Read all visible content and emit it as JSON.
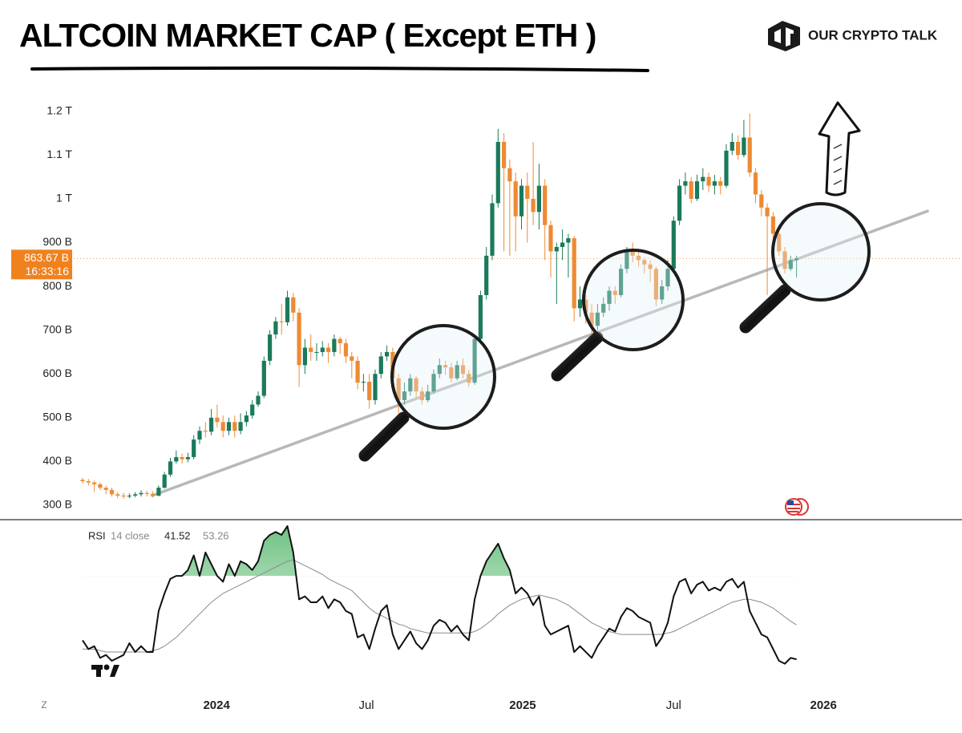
{
  "chart_data": {
    "type": "candlestick",
    "title": "ALTCOIN MARKET CAP ( Except ETH )",
    "brand": "OUR CRYPTO TALK",
    "corner_label": "Z",
    "up_color": "#1b7a5b",
    "down_color": "#ee8a33",
    "grid": false,
    "xlim": [
      0,
      150
    ],
    "xticks": [
      {
        "value": 22.9,
        "label": "2024"
      },
      {
        "value": 48.5,
        "label": "Jul"
      },
      {
        "value": 75.2,
        "label": "2025"
      },
      {
        "value": 101,
        "label": "Jul"
      },
      {
        "value": 126.6,
        "label": "2026"
      }
    ],
    "ylim": [
      267,
      1271
    ],
    "yticks": [
      {
        "value": 300,
        "label": "300 B"
      },
      {
        "value": 400,
        "label": "400 B"
      },
      {
        "value": 500,
        "label": "500 B"
      },
      {
        "value": 600,
        "label": "600 B"
      },
      {
        "value": 700,
        "label": "700 B"
      },
      {
        "value": 800,
        "label": "800 B"
      },
      {
        "value": 900,
        "label": "900 B"
      },
      {
        "value": 1000,
        "label": "1 T"
      },
      {
        "value": 1100,
        "label": "1.1 T"
      },
      {
        "value": 1200,
        "label": "1.2 T"
      }
    ],
    "open": [
      358,
      355,
      352,
      348,
      340,
      335,
      325,
      322,
      320,
      322,
      325,
      328,
      326,
      322,
      340,
      370,
      400,
      410,
      405,
      410,
      450,
      470,
      468,
      500,
      490,
      470,
      490,
      470,
      490,
      505,
      530,
      550,
      630,
      690,
      720,
      718,
      775,
      740,
      620,
      660,
      650,
      650,
      660,
      650,
      680,
      670,
      640,
      630,
      580,
      582,
      540,
      600,
      640,
      650,
      590,
      540,
      560,
      590,
      560,
      540,
      560,
      600,
      620,
      615,
      590,
      620,
      600,
      580,
      680,
      780,
      870,
      990,
      1130,
      1070,
      1040,
      960,
      1030,
      1000,
      970,
      1030,
      940,
      880,
      890,
      900,
      910,
      750,
      770,
      740,
      710,
      740,
      760,
      790,
      780,
      840,
      880,
      870,
      860,
      850,
      840,
      770,
      800,
      840,
      950,
      1030,
      1040,
      1000,
      1040,
      1050,
      1030,
      1040,
      1030,
      1110,
      1130,
      1100,
      1140,
      1060,
      1010,
      980,
      960,
      920,
      880,
      840,
      860
    ],
    "high": [
      362,
      360,
      356,
      352,
      345,
      340,
      330,
      328,
      327,
      330,
      334,
      333,
      332,
      345,
      376,
      408,
      425,
      418,
      420,
      460,
      480,
      490,
      520,
      530,
      505,
      500,
      505,
      510,
      515,
      540,
      560,
      640,
      700,
      730,
      760,
      790,
      785,
      750,
      680,
      690,
      670,
      675,
      670,
      690,
      685,
      680,
      650,
      640,
      600,
      600,
      610,
      650,
      665,
      660,
      600,
      580,
      600,
      595,
      570,
      575,
      610,
      635,
      630,
      625,
      630,
      635,
      610,
      690,
      790,
      890,
      1010,
      1160,
      1150,
      1090,
      1060,
      1045,
      1060,
      1130,
      1080,
      1045,
      950,
      900,
      930,
      920,
      915,
      800,
      780,
      760,
      760,
      775,
      800,
      800,
      850,
      890,
      900,
      880,
      865,
      860,
      845,
      815,
      860,
      960,
      1045,
      1060,
      1050,
      1055,
      1070,
      1060,
      1055,
      1050,
      1125,
      1150,
      1145,
      1180,
      1195,
      1070,
      1020,
      990,
      970,
      930,
      890,
      870,
      870
    ],
    "low": [
      350,
      345,
      330,
      335,
      325,
      320,
      316,
      315,
      316,
      318,
      320,
      320,
      318,
      320,
      338,
      365,
      395,
      395,
      398,
      405,
      440,
      455,
      460,
      478,
      455,
      460,
      455,
      462,
      480,
      498,
      525,
      545,
      620,
      680,
      690,
      710,
      720,
      570,
      600,
      630,
      630,
      640,
      625,
      640,
      645,
      625,
      590,
      565,
      560,
      520,
      530,
      590,
      630,
      575,
      510,
      530,
      550,
      545,
      530,
      535,
      555,
      590,
      598,
      580,
      585,
      590,
      570,
      575,
      670,
      770,
      860,
      980,
      880,
      870,
      880,
      930,
      900,
      940,
      930,
      860,
      820,
      760,
      860,
      820,
      720,
      730,
      715,
      690,
      700,
      730,
      745,
      760,
      775,
      830,
      855,
      845,
      830,
      810,
      755,
      760,
      790,
      835,
      940,
      1010,
      990,
      995,
      1020,
      1015,
      1010,
      1010,
      1025,
      1100,
      1090,
      1095,
      1050,
      990,
      960,
      780,
      900,
      870,
      830,
      835,
      820
    ],
    "close": [
      355,
      352,
      348,
      340,
      335,
      325,
      322,
      320,
      322,
      325,
      328,
      326,
      322,
      340,
      370,
      400,
      410,
      405,
      410,
      450,
      470,
      468,
      500,
      490,
      470,
      490,
      470,
      490,
      505,
      530,
      550,
      630,
      690,
      720,
      718,
      775,
      740,
      620,
      660,
      650,
      650,
      660,
      650,
      680,
      670,
      640,
      630,
      580,
      582,
      540,
      600,
      640,
      650,
      590,
      540,
      560,
      590,
      560,
      540,
      560,
      600,
      620,
      615,
      590,
      620,
      600,
      580,
      680,
      780,
      870,
      990,
      1130,
      1070,
      1040,
      960,
      1030,
      1000,
      970,
      1030,
      940,
      880,
      890,
      900,
      910,
      750,
      770,
      740,
      710,
      740,
      760,
      790,
      780,
      840,
      880,
      870,
      860,
      850,
      840,
      770,
      800,
      840,
      950,
      1030,
      1040,
      1000,
      1040,
      1050,
      1030,
      1040,
      1030,
      1110,
      1130,
      1100,
      1140,
      1060,
      1010,
      980,
      960,
      920,
      880,
      840,
      860,
      863.67
    ],
    "last_price": {
      "value": 863.67,
      "label": "863.67 B"
    },
    "countdown": "16:33:16",
    "price_color": "#f0821e",
    "trendline": {
      "x": [
        11.9,
        144.4
      ],
      "values": [
        322,
        972
      ],
      "color": "#b8b8b8"
    },
    "rsi": {
      "label": "RSI",
      "params": "14 close",
      "color": "#111111",
      "ma_color": "#8a8a8a",
      "fill_level": 70,
      "fill_color": "#3fae5a",
      "ylim": [
        28.4,
        88.1
      ],
      "values": [
        48,
        45,
        46,
        42,
        43,
        41,
        42,
        43,
        47,
        44,
        46,
        44,
        44,
        58,
        64,
        69,
        70,
        70,
        72,
        77,
        70,
        78,
        74,
        70,
        68,
        74,
        70,
        75,
        74,
        72,
        75,
        82,
        84,
        85,
        84,
        87,
        78,
        62,
        63,
        61,
        61,
        63,
        59,
        62,
        61,
        58,
        57,
        49,
        50,
        45,
        52,
        58,
        60,
        50,
        45,
        48,
        51,
        47,
        45,
        48,
        53,
        55,
        54,
        51,
        53,
        50,
        48,
        62,
        70,
        75,
        78,
        81,
        76,
        72,
        64,
        66,
        64,
        60,
        63,
        53,
        50,
        51,
        52,
        53,
        44,
        46,
        44,
        42,
        46,
        49,
        52,
        51,
        56,
        59,
        58,
        56,
        55,
        54,
        46,
        49,
        54,
        63,
        68,
        69,
        64,
        67,
        68,
        65,
        66,
        65,
        68,
        69,
        66,
        68,
        58,
        54,
        50,
        49,
        45,
        41,
        40,
        42,
        41.52
      ],
      "ma": [
        45,
        45,
        45,
        44.5,
        44,
        44,
        44,
        44,
        44,
        44,
        44,
        44,
        44.5,
        45,
        46,
        47.5,
        49,
        51,
        53,
        55,
        57,
        59,
        61,
        62.5,
        64,
        65,
        66,
        67,
        68,
        69,
        70,
        71,
        72,
        73,
        74,
        75,
        75.5,
        74.5,
        73.5,
        72.5,
        71.5,
        70.5,
        69,
        68,
        67,
        66,
        65,
        63,
        61,
        59,
        57.5,
        56.5,
        55.5,
        54.5,
        53.5,
        53,
        52,
        51.5,
        51,
        50.5,
        50.5,
        50.5,
        50.5,
        50.5,
        50.5,
        50.5,
        50.5,
        51,
        52,
        53.5,
        55,
        57,
        58.5,
        60,
        61,
        62,
        62.5,
        63,
        63.5,
        63,
        62.5,
        62,
        61,
        60,
        58.5,
        57,
        55.5,
        54,
        53,
        52,
        51,
        50.5,
        50,
        50,
        50,
        50,
        50,
        50,
        50,
        50,
        50.5,
        51,
        52,
        53,
        54,
        55,
        56,
        57,
        58,
        59,
        60,
        61,
        61.5,
        62,
        62,
        61.5,
        61,
        60,
        59,
        57.5,
        56,
        54.5,
        53.26
      ]
    }
  }
}
